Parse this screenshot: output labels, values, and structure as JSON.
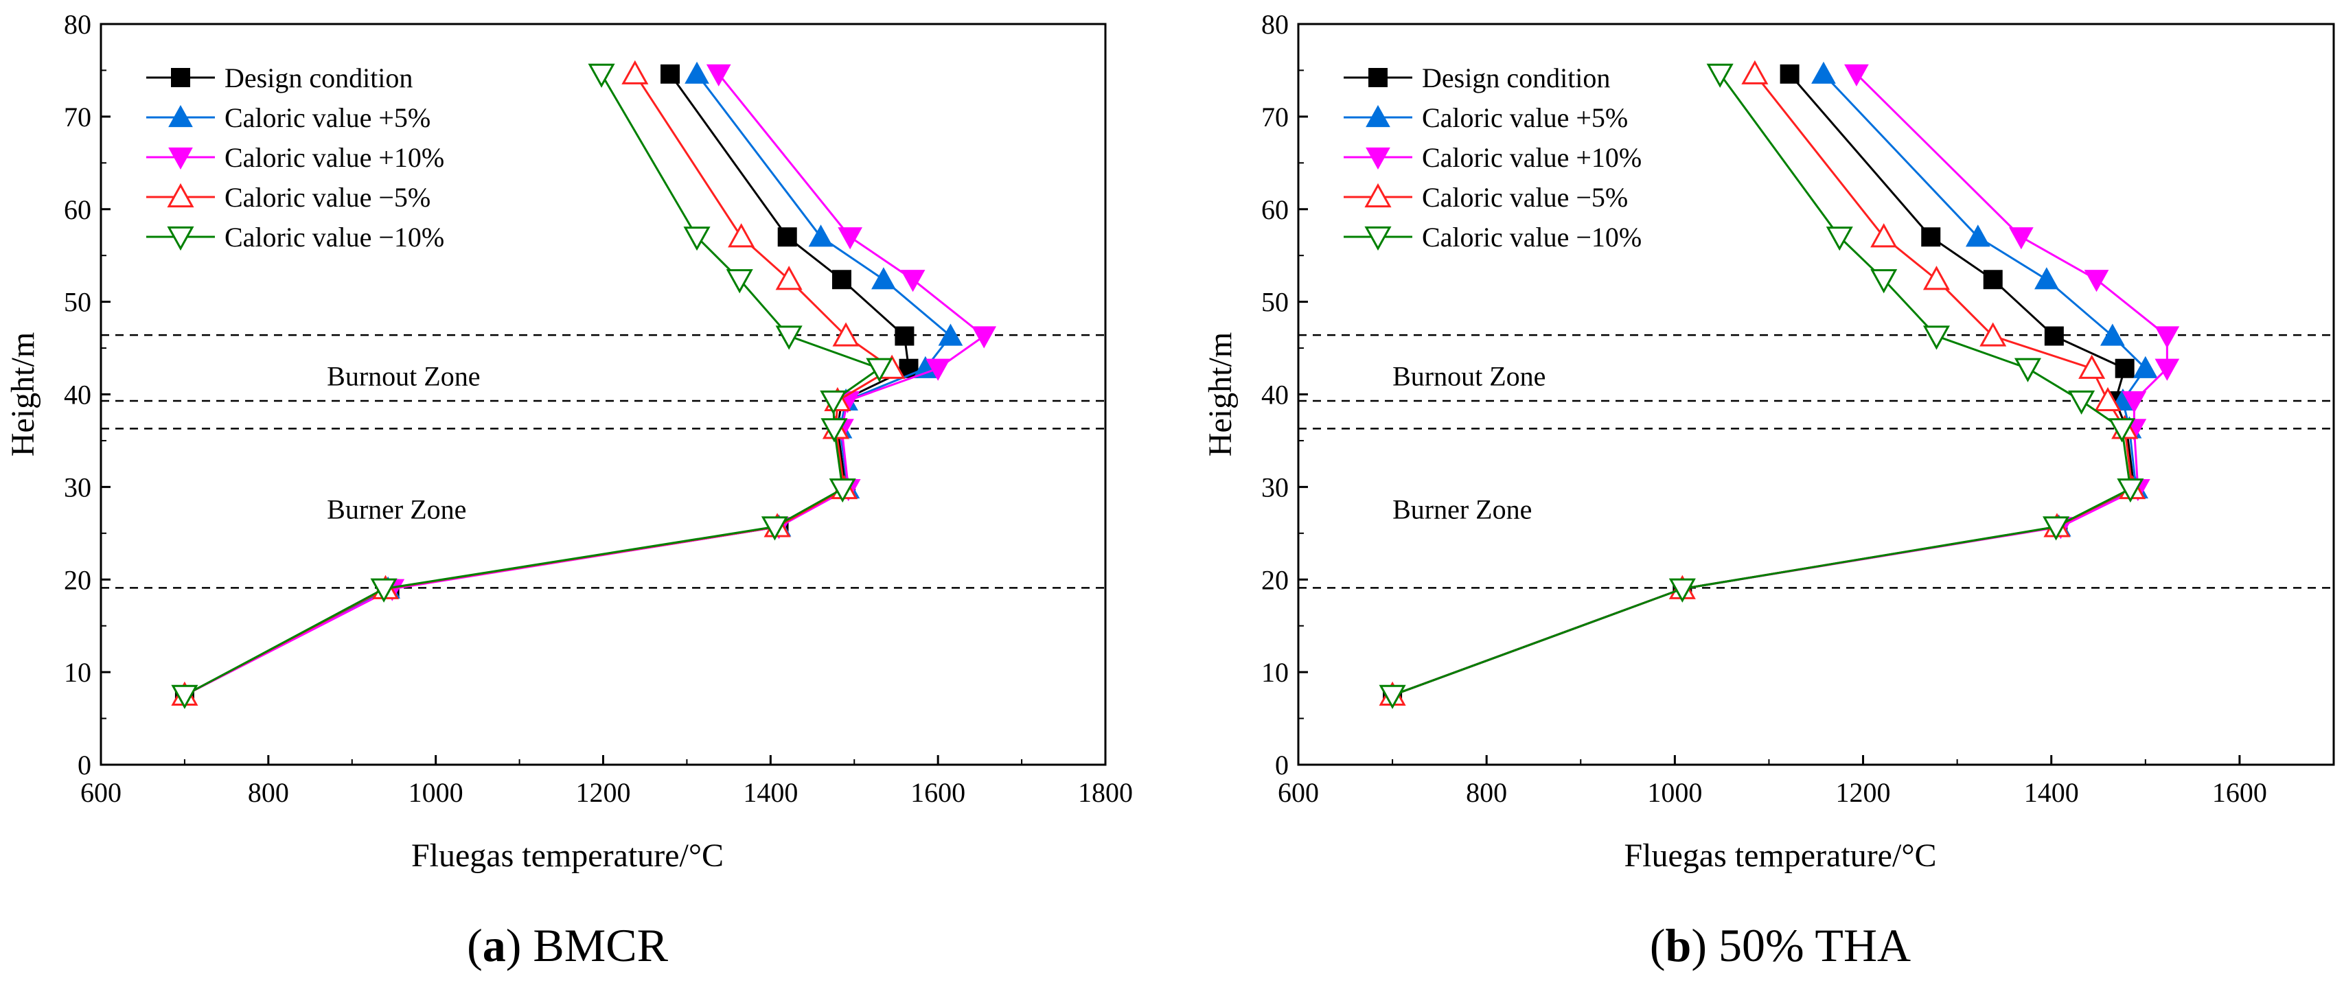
{
  "chart_data": [
    {
      "type": "line",
      "caption": {
        "letter": "a",
        "title": "BMCR"
      },
      "xlabel": "Fluegas temperature/°C",
      "ylabel": "Height/m",
      "xlim": [
        600,
        1800
      ],
      "ylim": [
        0,
        80
      ],
      "xticks": [
        600,
        800,
        1000,
        1200,
        1400,
        1600,
        1800
      ],
      "yticks": [
        0,
        10,
        20,
        30,
        40,
        50,
        60,
        70,
        80
      ],
      "hlines": [
        19.1,
        36.3,
        39.3,
        46.4
      ],
      "zones": [
        {
          "label": "Burnout Zone",
          "x": 870,
          "y": 42
        },
        {
          "label": "Burner Zone",
          "x": 870,
          "y": 27.6
        }
      ],
      "legend_position": "top-left",
      "series": [
        {
          "name": "Design condition",
          "color": "#000000",
          "marker": "square",
          "x": [
            700,
            945,
            1410,
            1490,
            1480,
            1485,
            1565,
            1560,
            1485,
            1420,
            1280
          ],
          "y": [
            7.5,
            19,
            25.7,
            29.8,
            36.3,
            39.3,
            42.8,
            46.3,
            52.4,
            57,
            74.6
          ]
        },
        {
          "name": "Caloric value +5%",
          "color": "#0070dd",
          "marker": "triangle-up",
          "x": [
            700,
            943,
            1410,
            1492,
            1483,
            1490,
            1585,
            1615,
            1535,
            1460,
            1312
          ],
          "y": [
            7.5,
            19,
            25.7,
            29.8,
            36.3,
            39.3,
            42.8,
            46.3,
            52.4,
            57,
            74.6
          ]
        },
        {
          "name": "Caloric value +10%",
          "color": "#ff00ff",
          "marker": "triangle-down",
          "x": [
            700,
            948,
            1410,
            1493,
            1485,
            1492,
            1600,
            1655,
            1570,
            1495,
            1338
          ],
          "y": [
            7.5,
            19,
            25.7,
            29.8,
            36.3,
            39.3,
            42.8,
            46.3,
            52.4,
            57,
            74.6
          ]
        },
        {
          "name": "Caloric value −5%",
          "color": "#ff2020",
          "marker": "triangle-up-open",
          "x": [
            700,
            940,
            1408,
            1488,
            1478,
            1480,
            1545,
            1490,
            1422,
            1365,
            1238
          ],
          "y": [
            7.5,
            19,
            25.7,
            29.8,
            36.3,
            39.3,
            42.8,
            46.3,
            52.4,
            57,
            74.6
          ]
        },
        {
          "name": "Caloric value −10%",
          "color": "#008000",
          "marker": "triangle-down-open",
          "x": [
            700,
            938,
            1405,
            1486,
            1476,
            1475,
            1530,
            1422,
            1363,
            1312,
            1198
          ],
          "y": [
            7.5,
            19,
            25.7,
            29.8,
            36.3,
            39.3,
            42.8,
            46.3,
            52.4,
            57,
            74.6
          ]
        }
      ]
    },
    {
      "type": "line",
      "caption": {
        "letter": "b",
        "title": "50% THA"
      },
      "xlabel": "Fluegas temperature/°C",
      "ylabel": "Height/m",
      "xlim": [
        600,
        1700
      ],
      "ylim": [
        0,
        80
      ],
      "xticks": [
        600,
        800,
        1000,
        1200,
        1400,
        1600
      ],
      "yticks": [
        0,
        10,
        20,
        30,
        40,
        50,
        60,
        70,
        80
      ],
      "hlines": [
        19.1,
        36.3,
        39.3,
        46.4
      ],
      "zones": [
        {
          "label": "Burnout Zone",
          "x": 700,
          "y": 42
        },
        {
          "label": "Burner Zone",
          "x": 700,
          "y": 27.6
        }
      ],
      "legend_position": "top-left",
      "series": [
        {
          "name": "Design condition",
          "color": "#000000",
          "marker": "square",
          "x": [
            700,
            1008,
            1407,
            1488,
            1480,
            1468,
            1478,
            1403,
            1338,
            1272,
            1122
          ],
          "y": [
            7.5,
            19,
            25.7,
            29.8,
            36.3,
            39.3,
            42.8,
            46.3,
            52.4,
            57,
            74.6
          ]
        },
        {
          "name": "Caloric value +5%",
          "color": "#0070dd",
          "marker": "triangle-up",
          "x": [
            700,
            1008,
            1408,
            1490,
            1483,
            1476,
            1500,
            1465,
            1395,
            1322,
            1158
          ],
          "y": [
            7.5,
            19,
            25.7,
            29.8,
            36.3,
            39.3,
            42.8,
            46.3,
            52.4,
            57,
            74.6
          ]
        },
        {
          "name": "Caloric value +10%",
          "color": "#ff00ff",
          "marker": "triangle-down",
          "x": [
            700,
            1008,
            1410,
            1492,
            1488,
            1488,
            1523,
            1523,
            1448,
            1368,
            1193
          ],
          "y": [
            7.5,
            19,
            25.7,
            29.8,
            36.3,
            39.3,
            42.8,
            46.3,
            52.4,
            57,
            74.6
          ]
        },
        {
          "name": "Caloric value −5%",
          "color": "#ff2020",
          "marker": "triangle-up-open",
          "x": [
            700,
            1008,
            1406,
            1486,
            1478,
            1460,
            1443,
            1338,
            1278,
            1222,
            1085
          ],
          "y": [
            7.5,
            19,
            25.7,
            29.8,
            36.3,
            39.3,
            42.8,
            46.3,
            52.4,
            57,
            74.6
          ]
        },
        {
          "name": "Caloric value −10%",
          "color": "#008000",
          "marker": "triangle-down-open",
          "x": [
            700,
            1008,
            1405,
            1484,
            1475,
            1432,
            1375,
            1278,
            1222,
            1175,
            1048
          ],
          "y": [
            7.5,
            19,
            25.7,
            29.8,
            36.3,
            39.3,
            42.8,
            46.3,
            52.4,
            57,
            74.6
          ]
        }
      ]
    }
  ]
}
